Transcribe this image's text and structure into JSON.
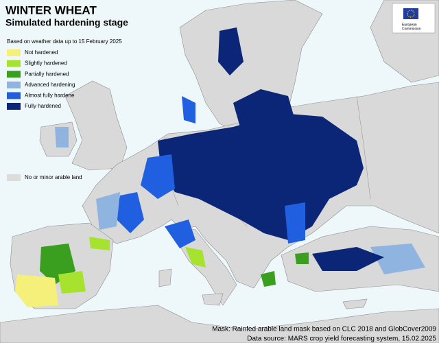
{
  "header": {
    "title": "WINTER WHEAT",
    "subtitle": "Simulated hardening stage",
    "note": "Based on weather data up to 15 February 2025"
  },
  "legend": {
    "items": [
      {
        "label": "Not hardened",
        "color": "#f5f07a"
      },
      {
        "label": "Slightly hardened",
        "color": "#a6e22e"
      },
      {
        "label": "Partially hardened",
        "color": "#3a9e1e"
      },
      {
        "label": "Advanced hardening",
        "color": "#8fb4e0"
      },
      {
        "label": "Almost fully hardene",
        "color": "#1f5fe0"
      },
      {
        "label": "Fully hardened",
        "color": "#0b2677"
      }
    ],
    "no_data": {
      "label": "No or minor arable land",
      "color": "#dcdcdc"
    }
  },
  "logo": {
    "line1": "European",
    "line2": "Commission"
  },
  "footer": {
    "mask": "Mask: Rainfed arable land mask based on CLC 2018 and GlobCover2009",
    "source": "Data source: MARS crop yield forecasting system, 15.02.2025"
  }
}
